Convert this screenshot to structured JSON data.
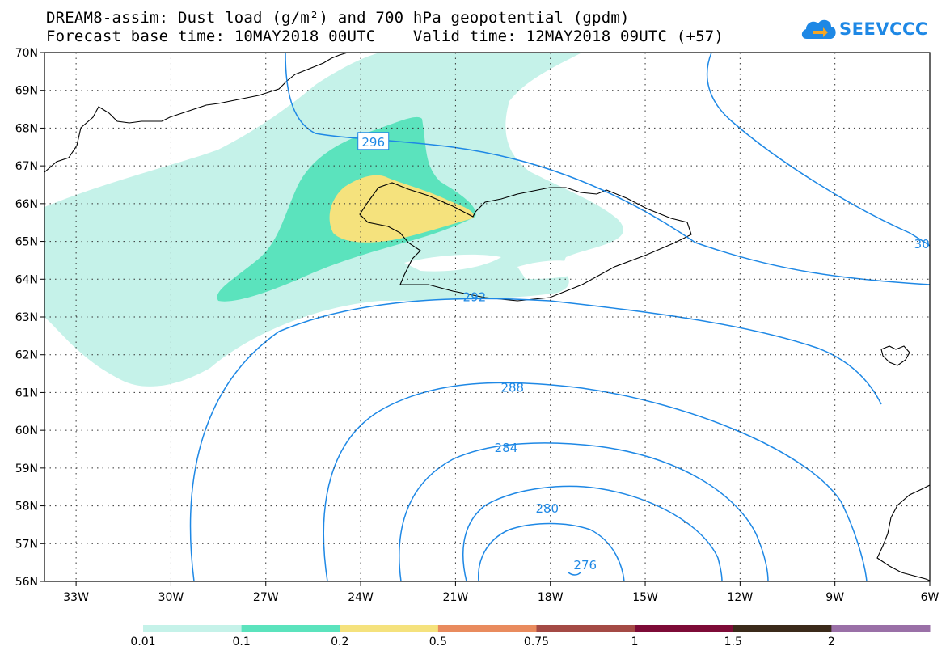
{
  "title": {
    "line1": "DREAM8-assim: Dust load (g/m²) and 700 hPa geopotential (gpdm)",
    "line2": "Forecast base time: 10MAY2018 00UTC    Valid time: 12MAY2018 09UTC (+57)"
  },
  "logo": {
    "text": "SEEVCCC",
    "color": "#1e88e5"
  },
  "map": {
    "lon_range": [
      -34.0,
      -6.0
    ],
    "lat_range": [
      56.0,
      70.0
    ],
    "lon_ticks": [
      {
        "lon": -33,
        "label": "33W"
      },
      {
        "lon": -30,
        "label": "30W"
      },
      {
        "lon": -27,
        "label": "27W"
      },
      {
        "lon": -24,
        "label": "24W"
      },
      {
        "lon": -21,
        "label": "21W"
      },
      {
        "lon": -18,
        "label": "18W"
      },
      {
        "lon": -15,
        "label": "15W"
      },
      {
        "lon": -12,
        "label": "12W"
      },
      {
        "lon": -9,
        "label": "9W"
      },
      {
        "lon": -6,
        "label": "6W"
      }
    ],
    "lat_ticks": [
      {
        "lat": 70,
        "label": "70N"
      },
      {
        "lat": 69,
        "label": "69N"
      },
      {
        "lat": 68,
        "label": "68N"
      },
      {
        "lat": 67,
        "label": "67N"
      },
      {
        "lat": 66,
        "label": "66N"
      },
      {
        "lat": 65,
        "label": "65N"
      },
      {
        "lat": 64,
        "label": "64N"
      },
      {
        "lat": 63,
        "label": "63N"
      },
      {
        "lat": 62,
        "label": "62N"
      },
      {
        "lat": 61,
        "label": "61N"
      },
      {
        "lat": 60,
        "label": "60N"
      },
      {
        "lat": 59,
        "label": "59N"
      },
      {
        "lat": 58,
        "label": "58N"
      },
      {
        "lat": 57,
        "label": "57N"
      },
      {
        "lat": 56,
        "label": "56N"
      }
    ],
    "grid": true,
    "contour_color": "#1e88e5",
    "contour_labels": [
      {
        "value": "296",
        "lon": -23.6,
        "lat": 67.65,
        "boxed": true
      },
      {
        "value": "292",
        "lon": -20.4,
        "lat": 63.55,
        "boxed": false
      },
      {
        "value": "288",
        "lon": -19.2,
        "lat": 61.15,
        "boxed": false
      },
      {
        "value": "284",
        "lon": -19.4,
        "lat": 59.55,
        "boxed": false
      },
      {
        "value": "280",
        "lon": -18.1,
        "lat": 57.95,
        "boxed": false
      },
      {
        "value": "276",
        "lon": -16.9,
        "lat": 56.45,
        "boxed": false
      },
      {
        "value": "30",
        "lon": -6.25,
        "lat": 64.95,
        "boxed": false
      }
    ],
    "dust_colors": {
      "level_0_01": "#c5f2e9",
      "level_0_1": "#5be3bd",
      "level_0_2": "#f5e27d"
    }
  },
  "colorbar": {
    "colors": [
      "#c5f2e9",
      "#5be3bd",
      "#f5e27d",
      "#e98b5e",
      "#a44a45",
      "#7d0b37",
      "#3b2a1a",
      "#9a70a7"
    ],
    "labels": [
      "0.01",
      "0.1",
      "0.2",
      "0.5",
      "0.75",
      "1",
      "1.5",
      "2"
    ]
  }
}
